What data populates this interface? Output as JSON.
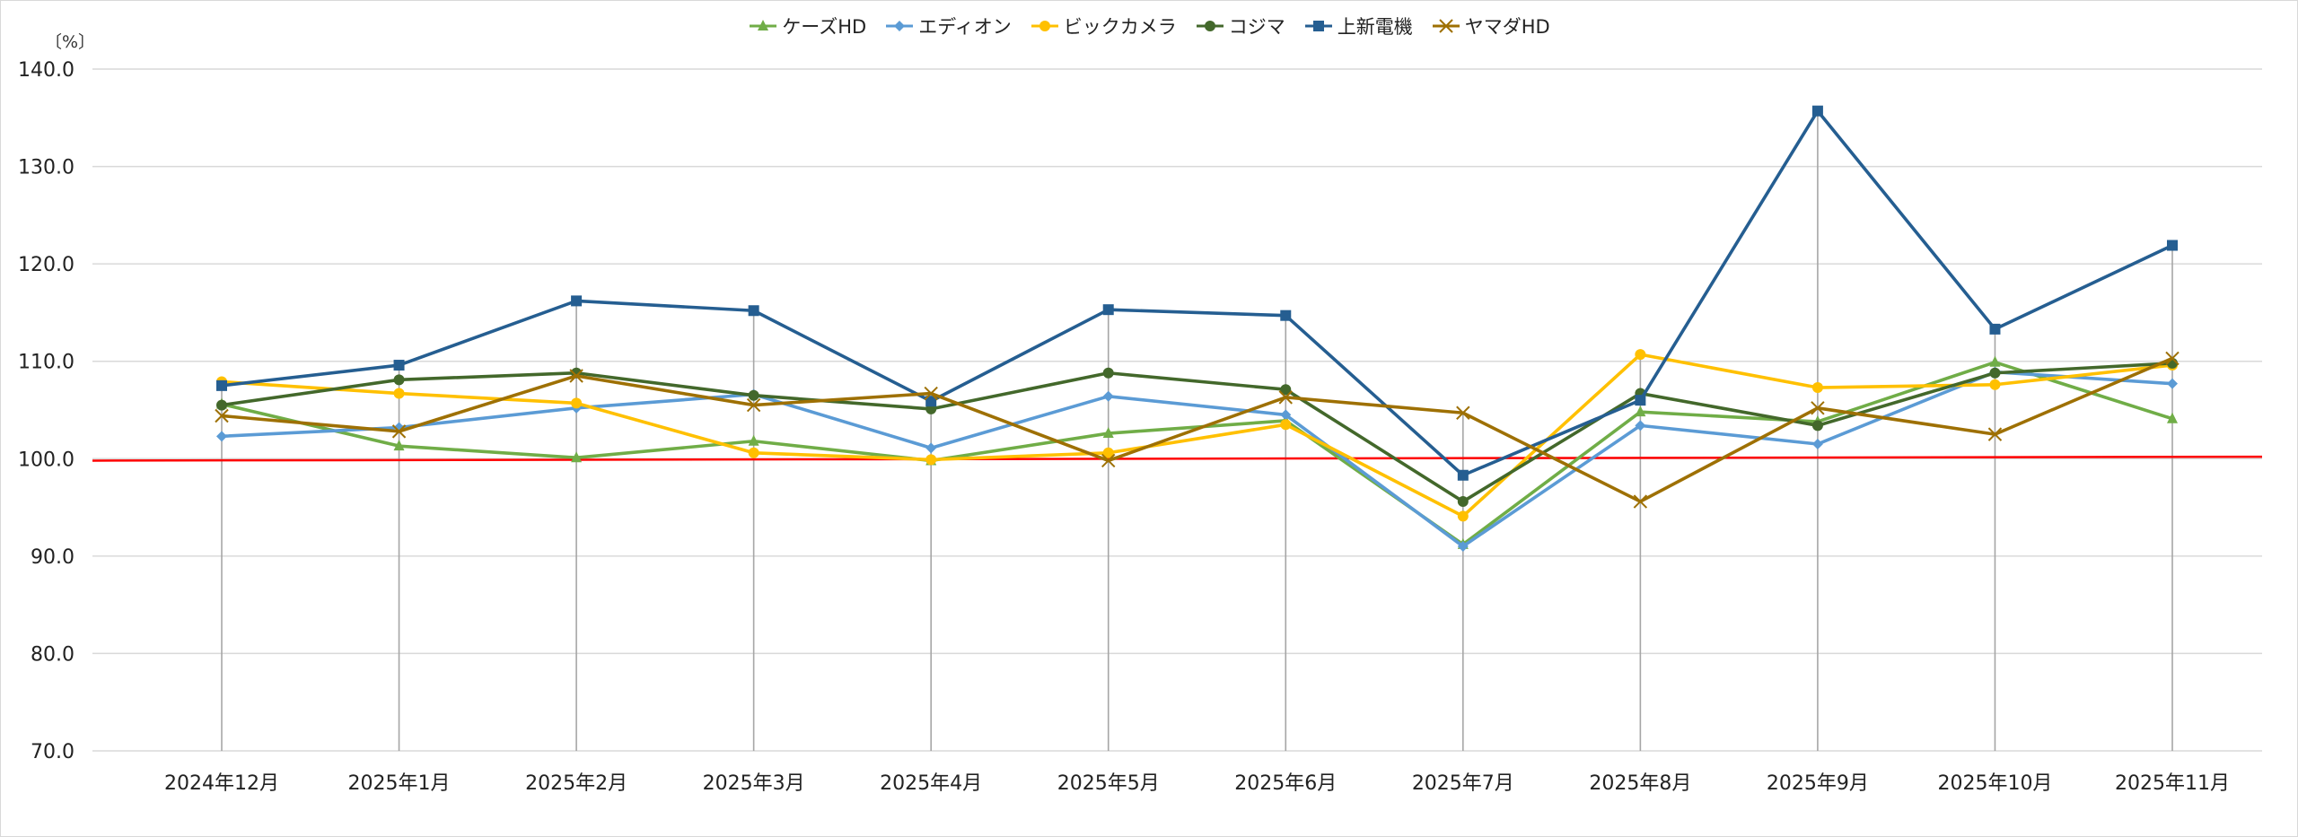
{
  "chart_data": {
    "type": "line",
    "unit_label": "〔%〕",
    "categories": [
      "2024年12月",
      "2025年1月",
      "2025年2月",
      "2025年3月",
      "2025年4月",
      "2025年5月",
      "2025年6月",
      "2025年7月",
      "2025年8月",
      "2025年9月",
      "2025年10月",
      "2025年11月"
    ],
    "ylim": [
      70,
      140
    ],
    "yticks": [
      "70.0",
      "80.0",
      "90.0",
      "100.0",
      "110.0",
      "120.0",
      "130.0",
      "140.0"
    ],
    "grid": true,
    "legend": "top",
    "drop_lines": true,
    "reference_line": {
      "value": 100,
      "color": "#ff0000"
    },
    "series": [
      {
        "name": "ケーズHD",
        "color": "#70ad47",
        "marker": "triangle",
        "values": [
          105.6,
          101.3,
          100.1,
          101.8,
          99.8,
          102.6,
          103.9,
          91.2,
          104.8,
          103.8,
          109.9,
          104.1
        ]
      },
      {
        "name": "エディオン",
        "color": "#5b9bd5",
        "marker": "diamond",
        "values": [
          102.3,
          103.2,
          105.2,
          106.6,
          101.1,
          106.4,
          104.5,
          91.0,
          103.4,
          101.5,
          108.9,
          107.7
        ]
      },
      {
        "name": "ビックカメラ",
        "color": "#ffc000",
        "marker": "circle",
        "values": [
          107.9,
          106.7,
          105.7,
          100.6,
          99.9,
          100.6,
          103.5,
          94.1,
          110.7,
          107.3,
          107.6,
          109.6
        ]
      },
      {
        "name": "コジマ",
        "color": "#43682b",
        "marker": "circle",
        "values": [
          105.5,
          108.1,
          108.8,
          106.5,
          105.1,
          108.8,
          107.1,
          95.6,
          106.7,
          103.4,
          108.8,
          109.8
        ]
      },
      {
        "name": "上新電機",
        "color": "#255e91",
        "marker": "square",
        "values": [
          107.5,
          109.6,
          116.2,
          115.2,
          105.9,
          115.3,
          114.7,
          98.3,
          106.0,
          135.7,
          113.3,
          121.9
        ]
      },
      {
        "name": "ヤマダHD",
        "color": "#9e7003",
        "marker": "x",
        "values": [
          104.4,
          102.8,
          108.5,
          105.5,
          106.7,
          99.8,
          106.3,
          104.7,
          95.6,
          105.2,
          102.5,
          110.3
        ]
      }
    ]
  }
}
